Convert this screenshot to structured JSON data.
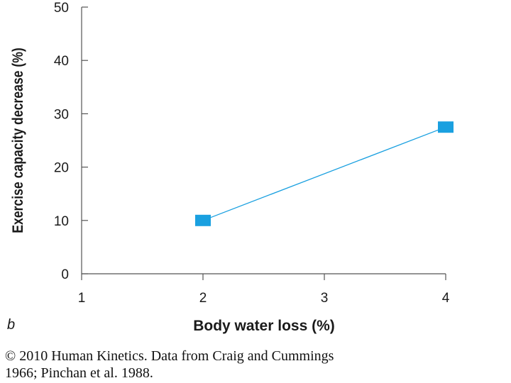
{
  "chart_data": {
    "type": "line",
    "panel_label": "b",
    "title": "",
    "xlabel": "Body water loss (%)",
    "ylabel": "Exercise capacity decrease (%)",
    "xlim": [
      1,
      4
    ],
    "ylim": [
      0,
      50
    ],
    "x_ticks": [
      1,
      2,
      3,
      4
    ],
    "y_ticks": [
      0,
      10,
      20,
      30,
      40,
      50
    ],
    "grid": false,
    "series": [
      {
        "x": [
          2,
          4
        ],
        "y": [
          10,
          27.5
        ],
        "color": "#1aa0e0",
        "marker": "square"
      }
    ]
  },
  "caption": {
    "line1": "© 2010 Human Kinetics. Data from Craig and Cummings",
    "line2": "1966; Pinchan et al. 1988."
  }
}
